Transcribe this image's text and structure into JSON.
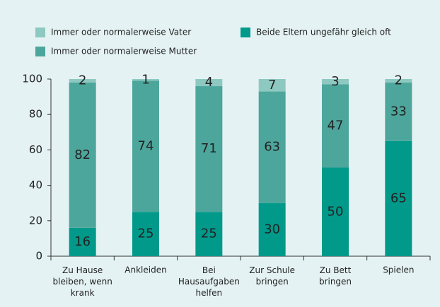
{
  "chart_data": {
    "type": "bar",
    "stacked": true,
    "categories": [
      "Zu Hause\nbleiben, wenn\nkrank",
      "Ankleiden",
      "Bei\nHausaufgaben\nhelfen",
      "Zur Schule\nbringen",
      "Zu Bett\nbringen",
      "Spielen"
    ],
    "series": [
      {
        "name": "Beide Eltern ungefähr gleich oft",
        "color": "#00998a",
        "values": [
          16,
          25,
          25,
          30,
          50,
          65
        ]
      },
      {
        "name": "Immer oder normalerweise Mutter",
        "color": "#4da69c",
        "values": [
          82,
          74,
          71,
          63,
          47,
          33
        ]
      },
      {
        "name": "Immer oder normalerweise Vater",
        "color": "#8ec9c1",
        "values": [
          2,
          1,
          4,
          7,
          3,
          2
        ]
      }
    ],
    "ylim": [
      0,
      100
    ],
    "yticks": [
      0,
      20,
      40,
      60,
      80,
      100
    ],
    "grid": false
  }
}
